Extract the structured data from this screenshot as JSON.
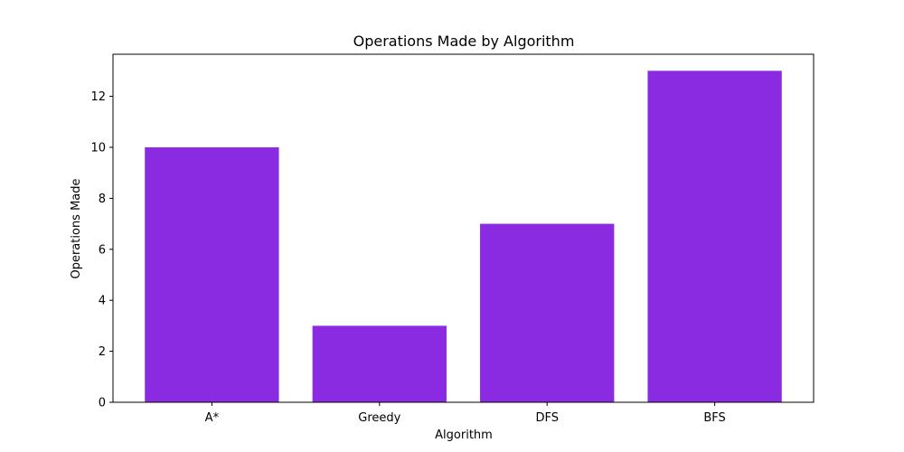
{
  "chart_data": {
    "type": "bar",
    "title": "Operations Made by Algorithm",
    "xlabel": "Algorithm",
    "ylabel": "Operations Made",
    "categories": [
      "A*",
      "Greedy",
      "DFS",
      "BFS"
    ],
    "values": [
      10,
      3,
      7,
      13
    ],
    "ylim": [
      0,
      13.65
    ],
    "yticks": [
      "0",
      "2",
      "4",
      "6",
      "8",
      "10",
      "12"
    ],
    "bar_color": "#8a2be2",
    "grid": false,
    "legend": "none"
  }
}
